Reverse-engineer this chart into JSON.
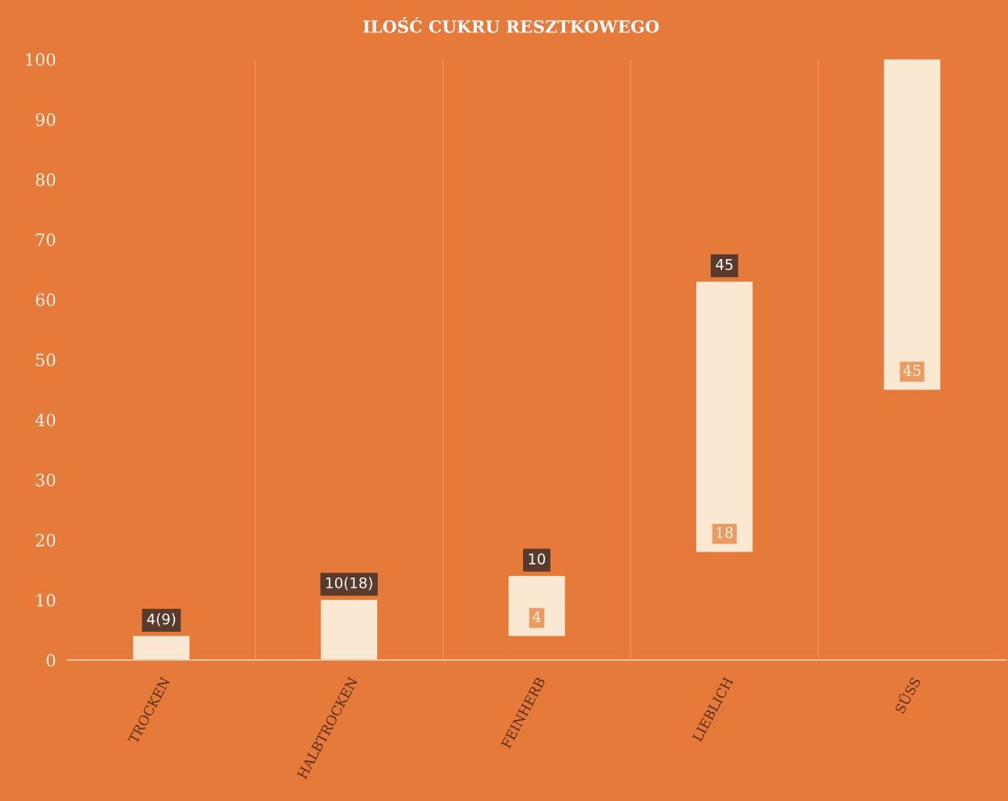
{
  "chart_data": {
    "type": "bar",
    "title": "ILOŚĆ CUKRU RESZTKOWEGO",
    "categories": [
      "TROCKEN",
      "HALBTROCKEN",
      "FEINHERB",
      "LIEBLICH",
      "SÜSS"
    ],
    "base": [
      0,
      0,
      4,
      18,
      45
    ],
    "values": [
      4,
      10,
      10,
      45,
      55
    ],
    "color": "#fbe8d3",
    "ylim": [
      0,
      100
    ],
    "yticks": [
      0,
      10,
      20,
      30,
      40,
      50,
      60,
      70,
      80,
      90,
      100
    ],
    "grid": "x",
    "annotations": [
      {
        "text": "4(9)",
        "x": "TROCKEN",
        "y": 4
      },
      {
        "text": "10(18)",
        "x": "HALBTROCKEN",
        "y": 10
      },
      {
        "text": "10",
        "x": "FEINHERB",
        "y": 14
      },
      {
        "text": "4",
        "x": "FEINHERB",
        "y": 4
      },
      {
        "text": "45",
        "x": "LIEBLICH",
        "y": 63
      },
      {
        "text": "18",
        "x": "LIEBLICH",
        "y": 18
      },
      {
        "text": "45",
        "x": "SÜSS",
        "y": 45
      }
    ]
  }
}
